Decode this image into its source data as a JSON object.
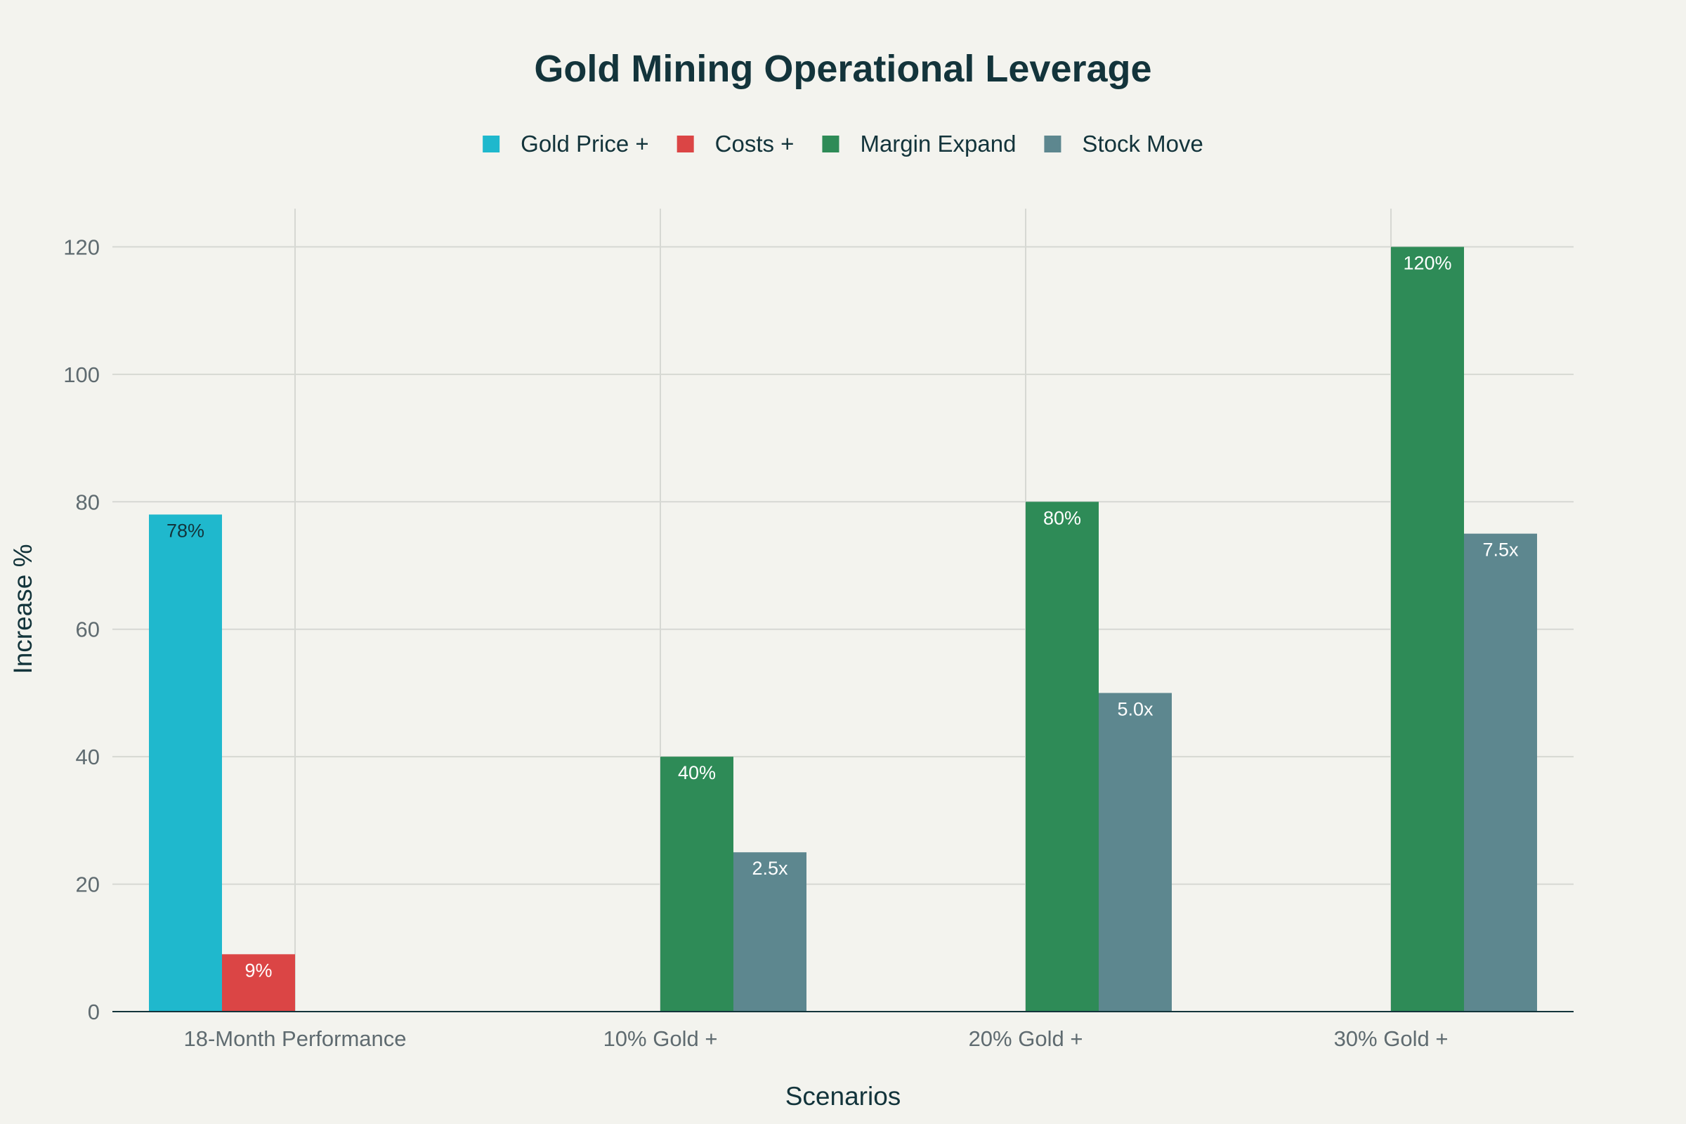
{
  "chart_data": {
    "type": "bar",
    "title": "Gold Mining Operational Leverage",
    "xlabel": "Scenarios",
    "ylabel": "Increase %",
    "ylim": [
      0,
      126
    ],
    "yticks": [
      0,
      20,
      40,
      60,
      80,
      100,
      120
    ],
    "grid": true,
    "legend_position": "top-center",
    "categories": [
      "18-Month Performance",
      "10% Gold +",
      "20% Gold +",
      "30% Gold +"
    ],
    "series": [
      {
        "name": "Gold Price +",
        "color": "#1fb8cd",
        "values": [
          78,
          null,
          null,
          null
        ],
        "labels": [
          "78%",
          "",
          "",
          ""
        ]
      },
      {
        "name": "Costs +",
        "color": "#db4545",
        "values": [
          9,
          null,
          null,
          null
        ],
        "labels": [
          "9%",
          "",
          "",
          ""
        ]
      },
      {
        "name": "Margin Expand",
        "color": "#2e8b57",
        "values": [
          null,
          40,
          80,
          120
        ],
        "labels": [
          "",
          "40%",
          "80%",
          "120%"
        ]
      },
      {
        "name": "Stock Move",
        "color": "#5d878f",
        "values": [
          null,
          25,
          50,
          75
        ],
        "labels": [
          "",
          "2.5x",
          "5.0x",
          "7.5x"
        ]
      }
    ]
  }
}
